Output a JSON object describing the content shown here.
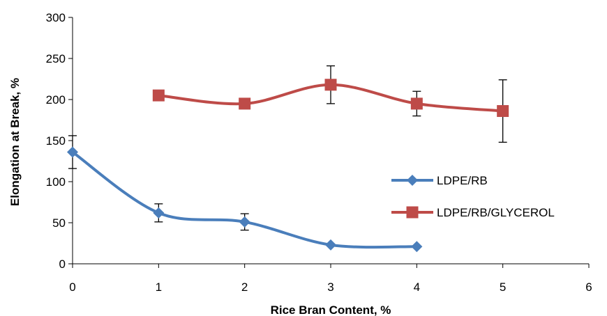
{
  "chart_data": {
    "type": "line",
    "smooth": true,
    "xlabel": "Rice Bran Content, %",
    "ylabel": "Elongation at Break, %",
    "xlim": [
      0,
      6
    ],
    "ylim": [
      0,
      300
    ],
    "x_ticks": [
      0,
      1,
      2,
      3,
      4,
      5,
      6
    ],
    "y_ticks": [
      0,
      50,
      100,
      150,
      200,
      250,
      300
    ],
    "grid": false,
    "legend_position": "right",
    "series": [
      {
        "name": "LDPE/RB",
        "color": "#4a7ebb",
        "marker": "diamond",
        "x": [
          0,
          1,
          2,
          3,
          4
        ],
        "y": [
          136,
          62,
          51,
          23,
          21
        ],
        "error": [
          20,
          11,
          10,
          null,
          null
        ]
      },
      {
        "name": "LDPE/RB/GLYCEROL",
        "color": "#be4b48",
        "marker": "square",
        "x": [
          1,
          2,
          3,
          4,
          5
        ],
        "y": [
          205,
          195,
          218,
          195,
          186
        ],
        "error": [
          null,
          null,
          23,
          15,
          38
        ]
      }
    ]
  }
}
